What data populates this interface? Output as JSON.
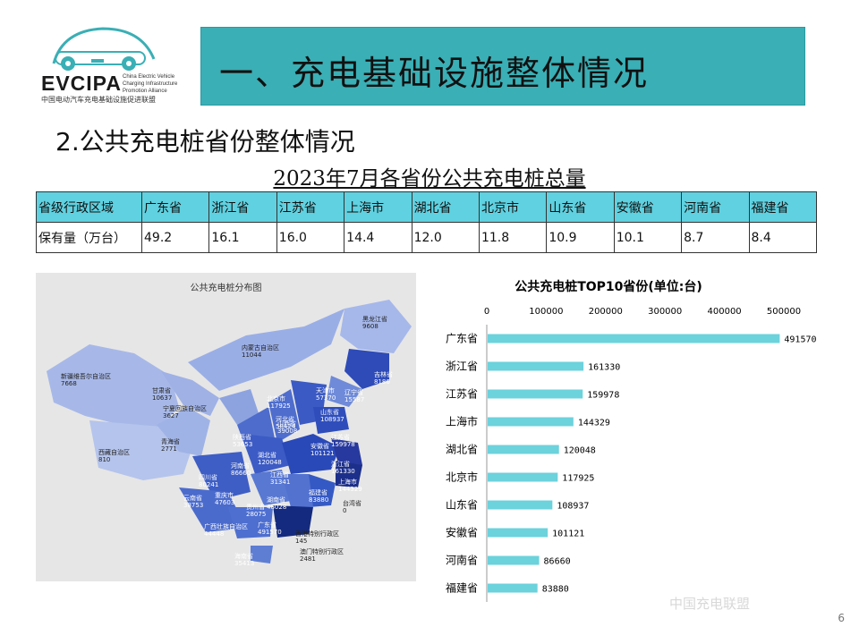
{
  "logo": {
    "brand": "EVCIPA",
    "english": "China Electric Vehicle Charging Infrastructure Promotion Alliance",
    "chinese": "中国电动汽车充电基础设施促进联盟"
  },
  "header": {
    "title": "一、充电基础设施整体情况"
  },
  "section": {
    "subtitle": "2.公共充电桩省份整体情况"
  },
  "table": {
    "title": "2023年7月各省份公共充电桩总量",
    "header_label": "省级行政区域",
    "row_label": "保有量（万台）",
    "provinces": [
      "广东省",
      "浙江省",
      "江苏省",
      "上海市",
      "湖北省",
      "北京市",
      "山东省",
      "安徽省",
      "河南省",
      "福建省"
    ],
    "values": [
      "49.2",
      "16.1",
      "16.0",
      "14.4",
      "12.0",
      "11.8",
      "10.9",
      "10.1",
      "8.7",
      "8.4"
    ]
  },
  "map": {
    "title": "公共充电桩分布图",
    "labels": [
      {
        "name": "黑龙江省",
        "value": "9608"
      },
      {
        "name": "内蒙古自治区",
        "value": "11044"
      },
      {
        "name": "吉林省",
        "value": "8186"
      },
      {
        "name": "新疆维吾尔自治区",
        "value": "7668"
      },
      {
        "name": "甘肃省",
        "value": "10637"
      },
      {
        "name": "北京市",
        "value": "117925"
      },
      {
        "name": "天津市",
        "value": "57370"
      },
      {
        "name": "辽宁省",
        "value": "15587"
      },
      {
        "name": "河北省",
        "value": "58424"
      },
      {
        "name": "宁夏回族自治区",
        "value": "3627"
      },
      {
        "name": "山东省",
        "value": "108937"
      },
      {
        "name": "山西省",
        "value": "39008"
      },
      {
        "name": "陕西省",
        "value": "53653"
      },
      {
        "name": "青海省",
        "value": "2771"
      },
      {
        "name": "江苏省",
        "value": "159978"
      },
      {
        "name": "安徽省",
        "value": "101121"
      },
      {
        "name": "河南省",
        "value": "86660"
      },
      {
        "name": "湖北省",
        "value": "120048"
      },
      {
        "name": "西藏自治区",
        "value": "810"
      },
      {
        "name": "浙江省",
        "value": "161330"
      },
      {
        "name": "四川省",
        "value": "80241"
      },
      {
        "name": "上海市",
        "value": "144329"
      },
      {
        "name": "重庆市",
        "value": "47603"
      },
      {
        "name": "江西省",
        "value": "31341"
      },
      {
        "name": "湖南省",
        "value": "48028"
      },
      {
        "name": "福建省",
        "value": "83880"
      },
      {
        "name": "云南省",
        "value": "38753"
      },
      {
        "name": "贵州省",
        "value": "28075"
      },
      {
        "name": "台湾省",
        "value": "0"
      },
      {
        "name": "广西壮族自治区",
        "value": "44448"
      },
      {
        "name": "广东省",
        "value": "491570"
      },
      {
        "name": "香港特别行政区",
        "value": "145"
      },
      {
        "name": "海南省",
        "value": "35413"
      },
      {
        "name": "澳门特别行政区",
        "value": "2481"
      }
    ]
  },
  "chart_data": {
    "type": "bar",
    "orientation": "horizontal",
    "title": "公共充电桩TOP10省份(单位:台)",
    "categories": [
      "广东省",
      "浙江省",
      "江苏省",
      "上海市",
      "湖北省",
      "北京市",
      "山东省",
      "安徽省",
      "河南省",
      "福建省"
    ],
    "values": [
      491570,
      161330,
      159978,
      144329,
      120048,
      117925,
      108937,
      101121,
      86660,
      83880
    ],
    "xlim": [
      0,
      500000
    ],
    "xticks": [
      0,
      100000,
      200000,
      300000,
      400000,
      500000
    ],
    "axis_position": "top",
    "bar_color": "#6cd2dc",
    "grid": false
  },
  "footer": {
    "page_number": "6",
    "watermark": "中国充电联盟"
  }
}
